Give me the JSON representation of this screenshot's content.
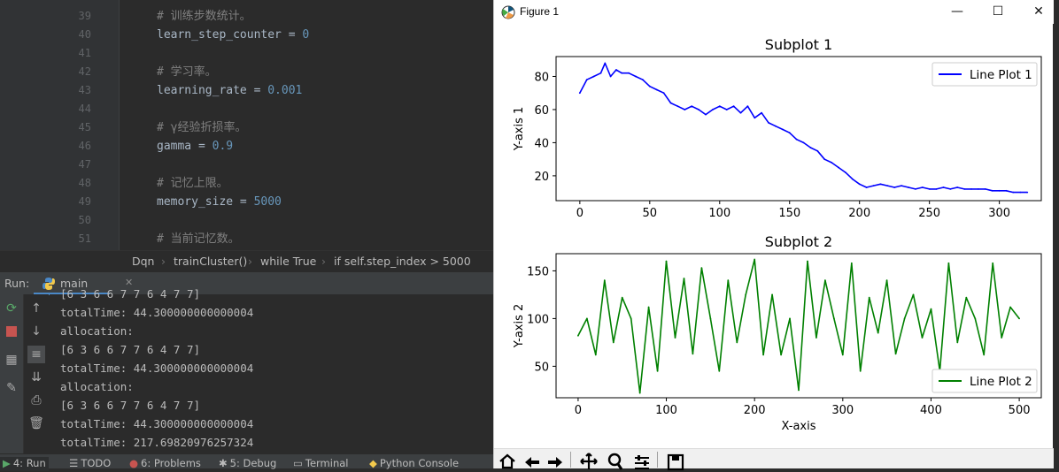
{
  "editor": {
    "lines": [
      {
        "num": "39",
        "code": "# 训练步数统计。",
        "kind": "comment"
      },
      {
        "num": "40",
        "var": "learn_step_counter",
        "op": " = ",
        "val": "0",
        "kind": "assign"
      },
      {
        "num": "41",
        "code": "",
        "kind": "blank"
      },
      {
        "num": "42",
        "code": "# 学习率。",
        "kind": "comment"
      },
      {
        "num": "43",
        "var": "learning_rate",
        "op": " = ",
        "val": "0.001",
        "kind": "assign"
      },
      {
        "num": "44",
        "code": "",
        "kind": "blank"
      },
      {
        "num": "45",
        "code": "# γ经验折损率。",
        "kind": "comment"
      },
      {
        "num": "46",
        "var": "gamma",
        "op": " = ",
        "val": "0.9",
        "kind": "assign"
      },
      {
        "num": "47",
        "code": "",
        "kind": "blank"
      },
      {
        "num": "48",
        "code": "# 记忆上限。",
        "kind": "comment"
      },
      {
        "num": "49",
        "var": "memory_size",
        "op": " = ",
        "val": "5000",
        "kind": "assign"
      },
      {
        "num": "50",
        "code": "",
        "kind": "blank"
      },
      {
        "num": "51",
        "code": "# 当前记忆数。",
        "kind": "comment"
      }
    ]
  },
  "breadcrumb": {
    "items": [
      "Dqn",
      "trainCluster()",
      "while True",
      "if self.step_index > 5000"
    ]
  },
  "run_panel": {
    "label": "Run:",
    "tab": "main",
    "console_lines": [
      "[6 3 6 6 7 7 6 4 7 7]",
      "totalTime: 44.300000000000004",
      "allocation:",
      "[6 3 6 6 7 7 6 4 7 7]",
      "totalTime: 44.300000000000004",
      "allocation:",
      "[6 3 6 6 7 7 6 4 7 7]",
      "totalTime: 44.300000000000004",
      "totalTime: 217.69820976257324"
    ]
  },
  "status_bar": {
    "run": "4: Run",
    "todo": "TODO",
    "problems": "6: Problems",
    "debug": "5: Debug",
    "terminal": "Terminal",
    "python_console": "Python Console"
  },
  "figure_window": {
    "title": "Figure 1",
    "minimize": "—",
    "maximize": "☐",
    "close": "✕"
  },
  "colors": {
    "line1": "#0000ff",
    "line2": "#008000",
    "ide_bg": "#2b2b2b",
    "accent": "#4a88c7"
  },
  "chart_data": [
    {
      "type": "line",
      "title": "Subplot 1",
      "xlabel": "",
      "ylabel": "Y-axis 1",
      "xlim": [
        -17,
        330
      ],
      "ylim": [
        5,
        92
      ],
      "xticks": [
        0,
        50,
        100,
        150,
        200,
        250,
        300
      ],
      "yticks": [
        20,
        40,
        60,
        80
      ],
      "legend": "top-right",
      "series": [
        {
          "name": "Line Plot 1",
          "color": "#0000ff",
          "x": [
            0,
            5,
            10,
            15,
            18,
            22,
            26,
            30,
            35,
            40,
            45,
            50,
            55,
            60,
            65,
            70,
            75,
            80,
            85,
            90,
            95,
            100,
            105,
            110,
            115,
            120,
            125,
            130,
            135,
            140,
            145,
            150,
            155,
            160,
            165,
            170,
            175,
            180,
            185,
            190,
            195,
            200,
            205,
            210,
            215,
            220,
            225,
            230,
            235,
            240,
            245,
            250,
            255,
            260,
            265,
            270,
            275,
            280,
            285,
            290,
            295,
            300,
            305,
            310,
            315,
            320
          ],
          "y": [
            70,
            78,
            80,
            82,
            88,
            80,
            84,
            82,
            82,
            80,
            78,
            74,
            72,
            70,
            64,
            62,
            60,
            62,
            60,
            57,
            60,
            62,
            60,
            62,
            58,
            62,
            55,
            58,
            52,
            50,
            48,
            46,
            42,
            40,
            37,
            35,
            30,
            28,
            25,
            22,
            18,
            15,
            13,
            14,
            15,
            14,
            13,
            14,
            13,
            12,
            13,
            12,
            12,
            13,
            12,
            13,
            12,
            12,
            12,
            12,
            11,
            11,
            11,
            10,
            10,
            10
          ]
        }
      ]
    },
    {
      "type": "line",
      "title": "Subplot 2",
      "xlabel": "X-axis",
      "ylabel": "Y-axis 2",
      "xlim": [
        -25,
        525
      ],
      "ylim": [
        17,
        168
      ],
      "xticks": [
        0,
        100,
        200,
        300,
        400,
        500
      ],
      "yticks": [
        50,
        100,
        150
      ],
      "legend": "bottom-right",
      "series": [
        {
          "name": "Line Plot 2",
          "color": "#008000",
          "x": [
            0,
            10,
            20,
            30,
            40,
            50,
            60,
            70,
            80,
            90,
            100,
            110,
            120,
            130,
            140,
            150,
            160,
            170,
            180,
            190,
            200,
            210,
            220,
            230,
            240,
            250,
            260,
            270,
            280,
            290,
            300,
            310,
            320,
            330,
            340,
            350,
            360,
            370,
            380,
            390,
            400,
            410,
            420,
            430,
            440,
            450,
            460,
            470,
            480,
            490,
            500
          ],
          "y": [
            82,
            100,
            62,
            140,
            75,
            122,
            100,
            22,
            112,
            45,
            160,
            80,
            142,
            63,
            153,
            100,
            45,
            140,
            75,
            125,
            162,
            62,
            125,
            62,
            100,
            25,
            160,
            80,
            140,
            100,
            62,
            158,
            45,
            122,
            85,
            140,
            63,
            100,
            125,
            80,
            110,
            45,
            158,
            75,
            122,
            100,
            62,
            158,
            80,
            112,
            100
          ]
        }
      ]
    }
  ]
}
